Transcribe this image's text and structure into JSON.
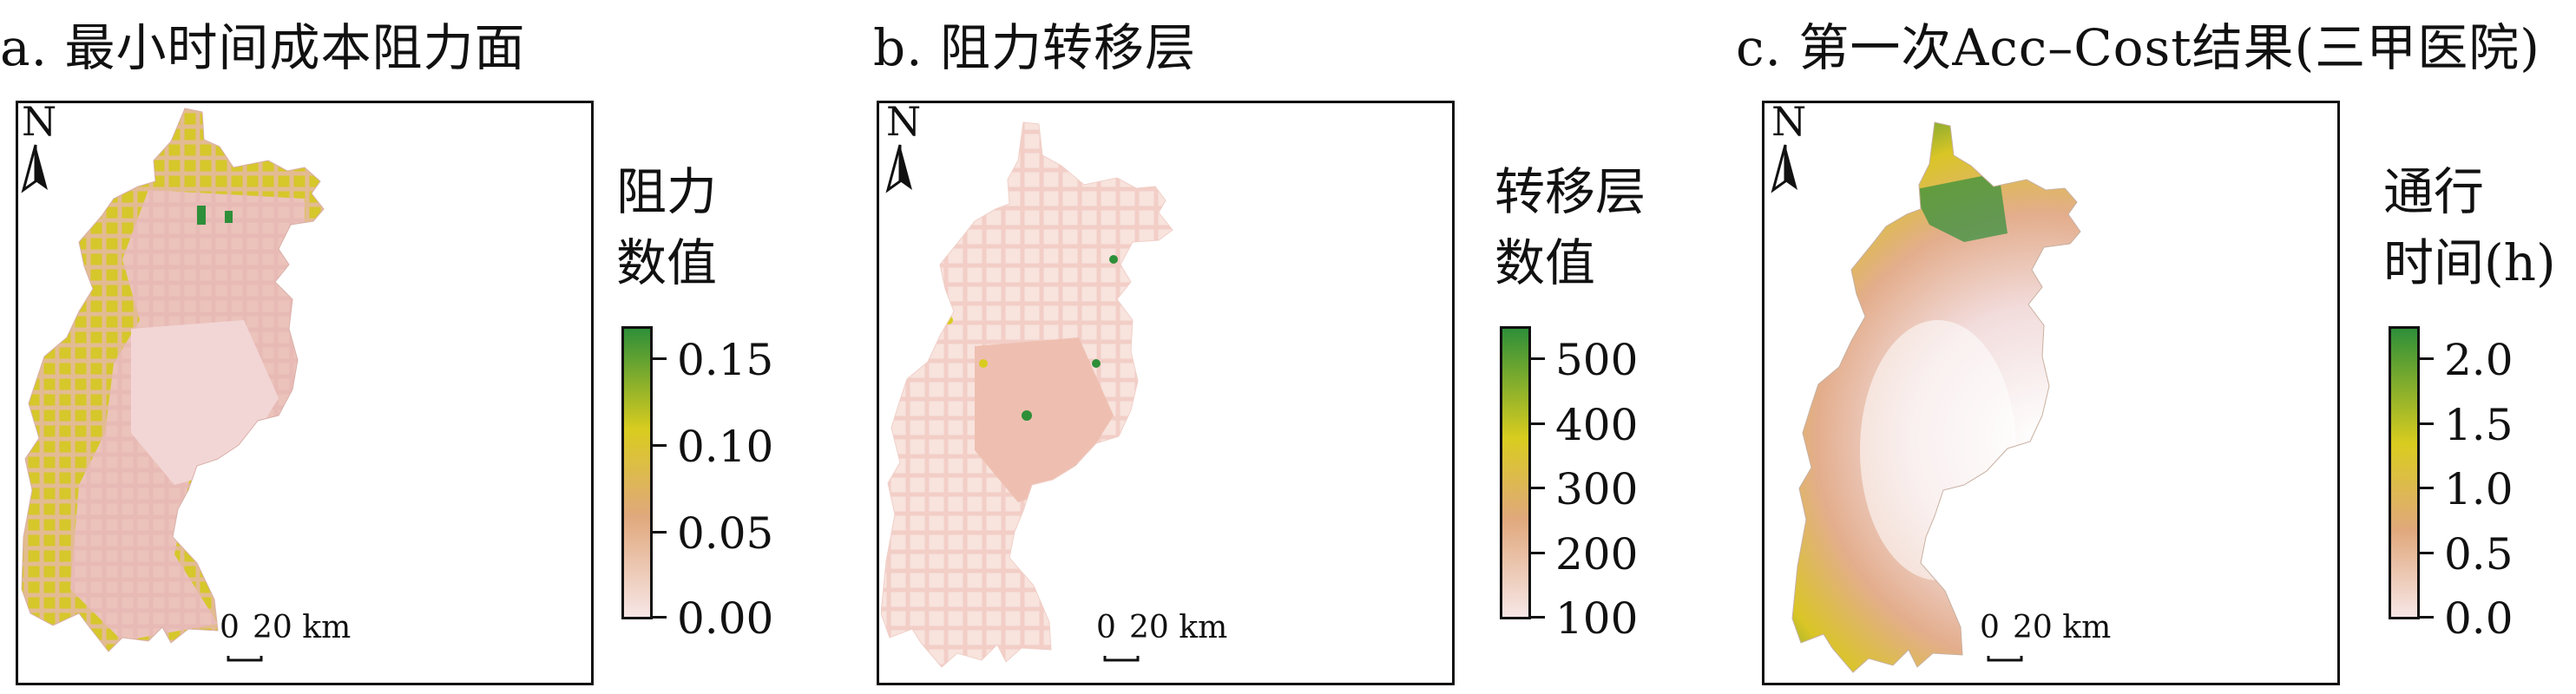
{
  "panels": [
    {
      "title": "a. 最小时间成本阻力面",
      "legend_title": [
        "阻力",
        "数值"
      ],
      "ticks": [
        "0.15",
        "0.10",
        "0.05",
        "0.00"
      ],
      "colors": [
        "#2e8f39",
        "#d9cc1f",
        "#e8bfa9",
        "#f7e6e6"
      ]
    },
    {
      "title": "b. 阻力转移层",
      "legend_title": [
        "转移层",
        "数值"
      ],
      "ticks": [
        "500",
        "400",
        "300",
        "200",
        "100"
      ],
      "colors": [
        "#2e8f39",
        "#d9cc1f",
        "#e8bfa9",
        "#f7e6e6"
      ]
    },
    {
      "title": "c. 第一次Acc–Cost结果(三甲医院)",
      "legend_title": [
        "通行",
        "时间(h)"
      ],
      "ticks": [
        "2.0",
        "1.5",
        "1.0",
        "0.5",
        "0.0"
      ],
      "colors": [
        "#2e8f39",
        "#d9cc1f",
        "#e8bfa9",
        "#f7e6e6"
      ]
    }
  ],
  "north": "N",
  "scale": {
    "start": "0",
    "end": "20 km"
  }
}
